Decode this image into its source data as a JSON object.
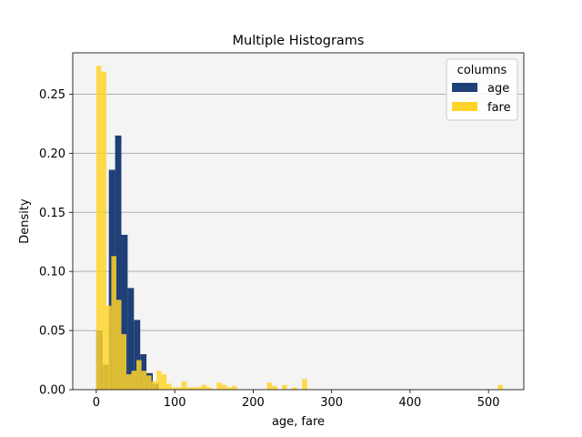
{
  "chart_data": {
    "type": "histogram",
    "title": "Multiple Histograms",
    "xlabel": "age, fare",
    "ylabel": "Density",
    "xlim": [
      -30,
      545
    ],
    "ylim": [
      0,
      0.285
    ],
    "x_ticks": [
      0,
      100,
      200,
      300,
      400,
      500
    ],
    "y_ticks": [
      0.0,
      0.05,
      0.1,
      0.15,
      0.2,
      0.25
    ],
    "x_tick_labels": [
      "0",
      "100",
      "200",
      "300",
      "400",
      "500"
    ],
    "y_tick_labels": [
      "0.00",
      "0.05",
      "0.10",
      "0.15",
      "0.20",
      "0.25"
    ],
    "grid": "y",
    "legend": {
      "title": "columns",
      "placement": "top-right"
    },
    "series": [
      {
        "name": "age",
        "color": "#1f3f77",
        "bin_edges": [
          0,
          8,
          16,
          24,
          32,
          40,
          48,
          56,
          64,
          72,
          80
        ],
        "density": [
          0.05,
          0.021,
          0.186,
          0.215,
          0.131,
          0.086,
          0.059,
          0.03,
          0.014,
          0.005
        ]
      },
      {
        "name": "fare",
        "color": "#ffd42a",
        "bin_edges": [
          0,
          6.4,
          12.8,
          19.2,
          25.6,
          32,
          38.4,
          44.8,
          51.2,
          57.6,
          64,
          70.4,
          76.8,
          83.2,
          89.6,
          96,
          102.4,
          108.8,
          115.2,
          121.6,
          128,
          134.4,
          140.8,
          147.2,
          153.6,
          160,
          166.4,
          172.8,
          179.2,
          185.6,
          192,
          198.4,
          204.8,
          211.2,
          217.6,
          224,
          230.4,
          236.8,
          243.2,
          249.6,
          256,
          262.4,
          268.8,
          275.2,
          281.6,
          288,
          294.4,
          300.8,
          307.2,
          313.6,
          320,
          326.4,
          332.8,
          339.2,
          345.6,
          352,
          358.4,
          364.8,
          371.2,
          377.6,
          384,
          390.4,
          396.8,
          403.2,
          409.6,
          416,
          422.4,
          428.8,
          435.2,
          441.6,
          448,
          454.4,
          460.8,
          467.2,
          473.6,
          480,
          486.4,
          492.8,
          499.2,
          505.6,
          512,
          518.4
        ],
        "density": [
          0.274,
          0.269,
          0.071,
          0.113,
          0.076,
          0.047,
          0.013,
          0.016,
          0.025,
          0.016,
          0.012,
          0.007,
          0.016,
          0.013,
          0.005,
          0.002,
          0.002,
          0.007,
          0.002,
          0.002,
          0.002,
          0.004,
          0.002,
          0,
          0.006,
          0.004,
          0.002,
          0.003,
          0,
          0,
          0,
          0,
          0,
          0,
          0.006,
          0.003,
          0,
          0.004,
          0,
          0.002,
          0,
          0.009,
          0,
          0,
          0,
          0,
          0,
          0,
          0,
          0,
          0,
          0,
          0,
          0,
          0,
          0,
          0,
          0,
          0,
          0,
          0,
          0,
          0,
          0,
          0,
          0,
          0,
          0,
          0,
          0,
          0,
          0,
          0,
          0,
          0,
          0,
          0,
          0,
          0,
          0,
          0.004
        ]
      }
    ]
  }
}
